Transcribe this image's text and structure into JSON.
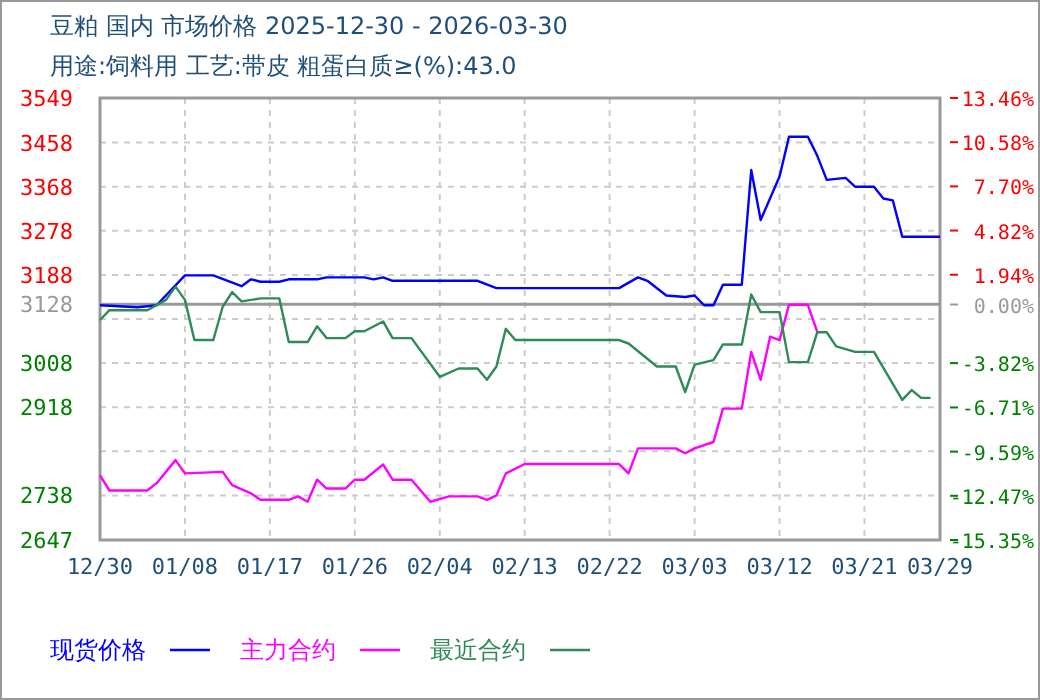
{
  "chart_data": {
    "type": "line",
    "title": "豆粕 国内 市场价格 2025-12-30 - 2026-03-30",
    "subtitle": "用途:饲料用 工艺:带皮 粗蛋白质≥(%):43.0",
    "xlim": [
      "2025-12-30",
      "2026-03-29"
    ],
    "xticks": [
      {
        "value": "2025-12-30",
        "label": "12/30"
      },
      {
        "value": "2026-01-08",
        "label": "01/08"
      },
      {
        "value": "2026-01-17",
        "label": "01/17"
      },
      {
        "value": "2026-01-26",
        "label": "01/26"
      },
      {
        "value": "2026-02-04",
        "label": "02/04"
      },
      {
        "value": "2026-02-13",
        "label": "02/13"
      },
      {
        "value": "2026-02-22",
        "label": "02/22"
      },
      {
        "value": "2026-03-03",
        "label": "03/03"
      },
      {
        "value": "2026-03-12",
        "label": "03/12"
      },
      {
        "value": "2026-03-21",
        "label": "03/21"
      },
      {
        "value": "2026-03-29",
        "label": "03/29"
      }
    ],
    "ylim": [
      2647,
      3549
    ],
    "yticks": [
      3549,
      3458,
      3368,
      3278,
      3188,
      3128,
      {
        "value": 3098,
        "label": null
      },
      3008,
      2918,
      {
        "value": 2828,
        "label": null
      },
      2738,
      2647
    ],
    "y2lim": [
      -15.35,
      13.46
    ],
    "y2ticks": [
      {
        "value": 13.46,
        "label": "13.46%"
      },
      {
        "value": 10.58,
        "label": "10.58%"
      },
      {
        "value": 7.7,
        "label": "7.70%"
      },
      {
        "value": 4.82,
        "label": "4.82%"
      },
      {
        "value": 1.94,
        "label": "1.94%"
      },
      {
        "value": 0,
        "label": "0.00%"
      },
      {
        "value": -3.82,
        "label": "-3.82%"
      },
      {
        "value": -6.71,
        "label": "-6.71%"
      },
      {
        "value": -9.59,
        "label": "-9.59%"
      },
      {
        "value": -12.47,
        "label": "-12.47%"
      },
      {
        "value": -15.35,
        "label": "-15.35%"
      }
    ],
    "ref_lines": [
      {
        "axis": "y",
        "value": 3128,
        "color": "#999999"
      }
    ],
    "grid": true,
    "legend": "bottom",
    "marker": "none",
    "line_style": "solid",
    "series": [
      {
        "name": "现货价格",
        "color": "#0000ff",
        "x": [
          "2025-12-30",
          "2026-01-03",
          "2026-01-05",
          "2026-01-08",
          "2026-01-11",
          "2026-01-14",
          "2026-01-15",
          "2026-01-16",
          "2026-01-18",
          "2026-01-19",
          "2026-01-22",
          "2026-01-23",
          "2026-01-27",
          "2026-01-28",
          "2026-01-29",
          "2026-01-30",
          "2026-02-08",
          "2026-02-10",
          "2026-02-23",
          "2026-02-25",
          "2026-02-26",
          "2026-02-28",
          "2026-03-02",
          "2026-03-03",
          "2026-03-04",
          "2026-03-05",
          "2026-03-06",
          "2026-03-08",
          "2026-03-09",
          "2026-03-10",
          "2026-03-12",
          "2026-03-13",
          "2026-03-15",
          "2026-03-16",
          "2026-03-17",
          "2026-03-19",
          "2026-03-20",
          "2026-03-22",
          "2026-03-23",
          "2026-03-24",
          "2026-03-25",
          "2026-03-29"
        ],
        "values": [
          3126,
          3122,
          3126,
          3187,
          3187,
          3165,
          3179,
          3174,
          3174,
          3179,
          3179,
          3183,
          3183,
          3179,
          3183,
          3176,
          3176,
          3161,
          3161,
          3183,
          3176,
          3146,
          3143,
          3146,
          3126,
          3126,
          3168,
          3168,
          3402,
          3300,
          3389,
          3470,
          3470,
          3431,
          3382,
          3386,
          3368,
          3368,
          3344,
          3340,
          3266,
          3266
        ]
      },
      {
        "name": "主力合约",
        "color": "#ff00ff",
        "x": [
          "2025-12-30",
          "2025-12-31",
          "2026-01-04",
          "2026-01-05",
          "2026-01-07",
          "2026-01-08",
          "2026-01-12",
          "2026-01-13",
          "2026-01-15",
          "2026-01-16",
          "2026-01-19",
          "2026-01-20",
          "2026-01-21",
          "2026-01-22",
          "2026-01-23",
          "2026-01-25",
          "2026-01-26",
          "2026-01-27",
          "2026-01-29",
          "2026-01-30",
          "2026-02-01",
          "2026-02-03",
          "2026-02-05",
          "2026-02-08",
          "2026-02-09",
          "2026-02-10",
          "2026-02-11",
          "2026-02-13",
          "2026-02-23",
          "2026-02-24",
          "2026-02-25",
          "2026-03-01",
          "2026-03-02",
          "2026-03-03",
          "2026-03-05",
          "2026-03-06",
          "2026-03-08",
          "2026-03-09",
          "2026-03-10",
          "2026-03-11",
          "2026-03-12",
          "2026-03-13",
          "2026-03-15",
          "2026-03-16"
        ],
        "values": [
          2779,
          2748,
          2748,
          2763,
          2810,
          2783,
          2786,
          2759,
          2742,
          2729,
          2729,
          2736,
          2725,
          2770,
          2752,
          2752,
          2770,
          2770,
          2801,
          2770,
          2770,
          2725,
          2736,
          2736,
          2729,
          2738,
          2783,
          2802,
          2802,
          2783,
          2834,
          2834,
          2824,
          2834,
          2847,
          2915,
          2915,
          3031,
          2974,
          3062,
          3055,
          3127,
          3127,
          3071
        ]
      },
      {
        "name": "最近合约",
        "color": "#2e8b57",
        "x": [
          "2025-12-30",
          "2025-12-31",
          "2026-01-04",
          "2026-01-06",
          "2026-01-07",
          "2026-01-08",
          "2026-01-09",
          "2026-01-11",
          "2026-01-12",
          "2026-01-13",
          "2026-01-14",
          "2026-01-16",
          "2026-01-18",
          "2026-01-19",
          "2026-01-21",
          "2026-01-22",
          "2026-01-23",
          "2026-01-25",
          "2026-01-26",
          "2026-01-27",
          "2026-01-29",
          "2026-01-30",
          "2026-02-01",
          "2026-02-04",
          "2026-02-06",
          "2026-02-08",
          "2026-02-09",
          "2026-02-10",
          "2026-02-11",
          "2026-02-12",
          "2026-02-23",
          "2026-02-24",
          "2026-02-27",
          "2026-03-01",
          "2026-03-02",
          "2026-03-03",
          "2026-03-05",
          "2026-03-06",
          "2026-03-08",
          "2026-03-09",
          "2026-03-10",
          "2026-03-12",
          "2026-03-13",
          "2026-03-15",
          "2026-03-16",
          "2026-03-17",
          "2026-03-18",
          "2026-03-20",
          "2026-03-22",
          "2026-03-25",
          "2026-03-26",
          "2026-03-27",
          "2026-03-28"
        ],
        "values": [
          3096,
          3116,
          3116,
          3137,
          3164,
          3137,
          3055,
          3055,
          3123,
          3153,
          3134,
          3140,
          3140,
          3051,
          3051,
          3083,
          3059,
          3059,
          3073,
          3073,
          3093,
          3059,
          3059,
          2980,
          2997,
          2997,
          2974,
          3001,
          3078,
          3055,
          3055,
          3048,
          3001,
          3001,
          2949,
          3005,
          3014,
          3046,
          3046,
          3148,
          3112,
          3112,
          3010,
          3010,
          3071,
          3071,
          3042,
          3031,
          3031,
          2933,
          2953,
          2937,
          2937
        ]
      }
    ]
  }
}
